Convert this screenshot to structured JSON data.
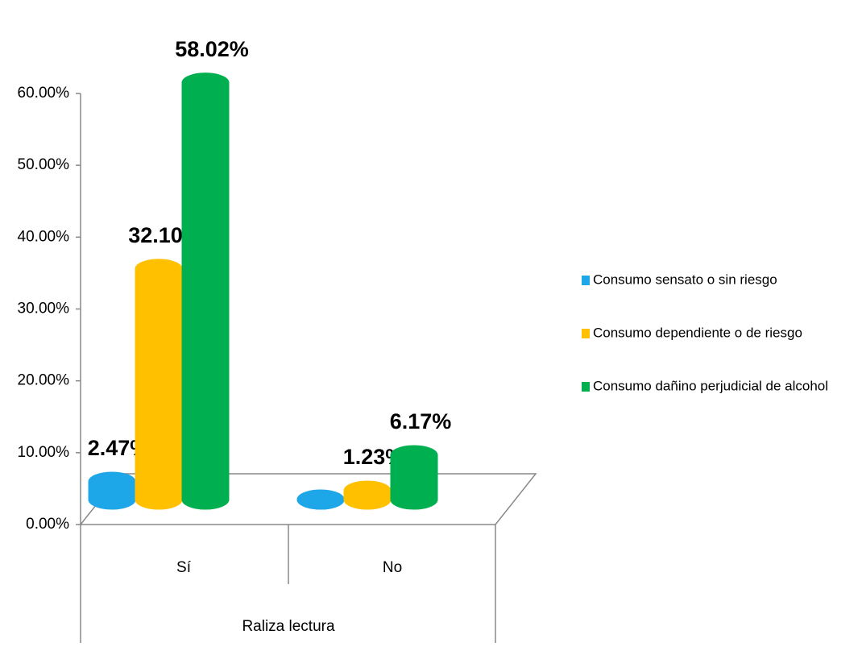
{
  "chart_data": {
    "type": "bar3d",
    "xlabel": "Raliza lectura",
    "categories": [
      "Sí",
      "No"
    ],
    "series": [
      {
        "name": "Consumo sensato o sin riesgo",
        "color": "#1ea7e8",
        "values": [
          2.47,
          0
        ],
        "value_labels": [
          "2.47%",
          null
        ]
      },
      {
        "name": "Consumo dependiente o de riesgo",
        "color": "#ffc000",
        "values": [
          32.1,
          1.23
        ],
        "value_labels": [
          "32.10%",
          "1.23%"
        ]
      },
      {
        "name": "Consumo dañino perjudicial de alcohol",
        "color": "#00b050",
        "values": [
          58.02,
          6.17
        ],
        "value_labels": [
          "58.02%",
          "6.17%"
        ]
      }
    ],
    "ylim": [
      0,
      60
    ],
    "yticks": [
      {
        "value": 0,
        "label": "0.00%"
      },
      {
        "value": 10,
        "label": "10.00%"
      },
      {
        "value": 20,
        "label": "20.00%"
      },
      {
        "value": 30,
        "label": "30.00%"
      },
      {
        "value": 40,
        "label": "40.00%"
      },
      {
        "value": 50,
        "label": "50.00%"
      },
      {
        "value": 60,
        "label": "60.00%"
      }
    ],
    "legend": "right"
  }
}
